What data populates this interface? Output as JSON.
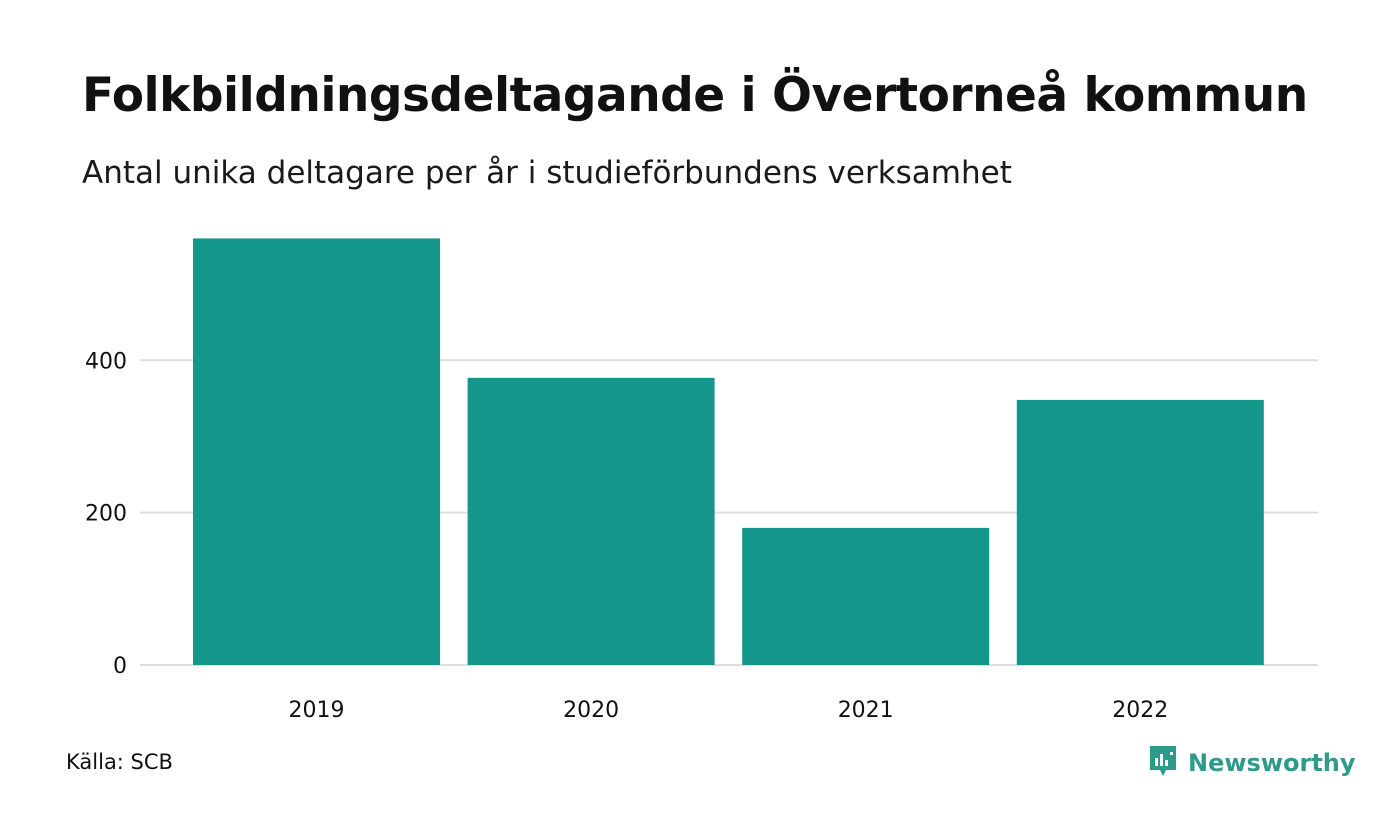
{
  "colors": {
    "bar": "#15968a",
    "grid": "#dddddd",
    "brand": "#2e9a8a"
  },
  "header": {
    "title": "Folkbildningsdeltagande i Övertorneå kommun",
    "subtitle": "Antal unika deltagare per år i studieförbundens verksamhet"
  },
  "footer": {
    "source": "Källa: SCB",
    "brand": "Newsworthy",
    "brand_icon": "newsworthy-logo-icon"
  },
  "chart_data": {
    "type": "bar",
    "title": "Folkbildningsdeltagande i Övertorneå kommun",
    "subtitle": "Antal unika deltagare per år i studieförbundens verksamhet",
    "categories": [
      "2019",
      "2020",
      "2021",
      "2022"
    ],
    "values": [
      560,
      377,
      180,
      348
    ],
    "xlabel": "",
    "ylabel": "",
    "yticks": [
      0,
      200,
      400
    ],
    "ylim": [
      0,
      575
    ],
    "grid": true
  }
}
